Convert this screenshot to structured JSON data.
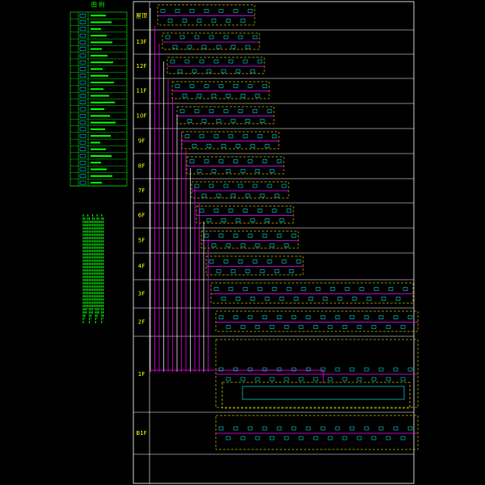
{
  "legend": {
    "title": "图 例"
  },
  "floors": [
    "屋顶",
    "13F",
    "12F",
    "11F",
    "10F",
    "9F",
    "8F",
    "7F",
    "6F",
    "5F",
    "4F",
    "3F",
    "2F",
    "1F",
    "B1F"
  ]
}
